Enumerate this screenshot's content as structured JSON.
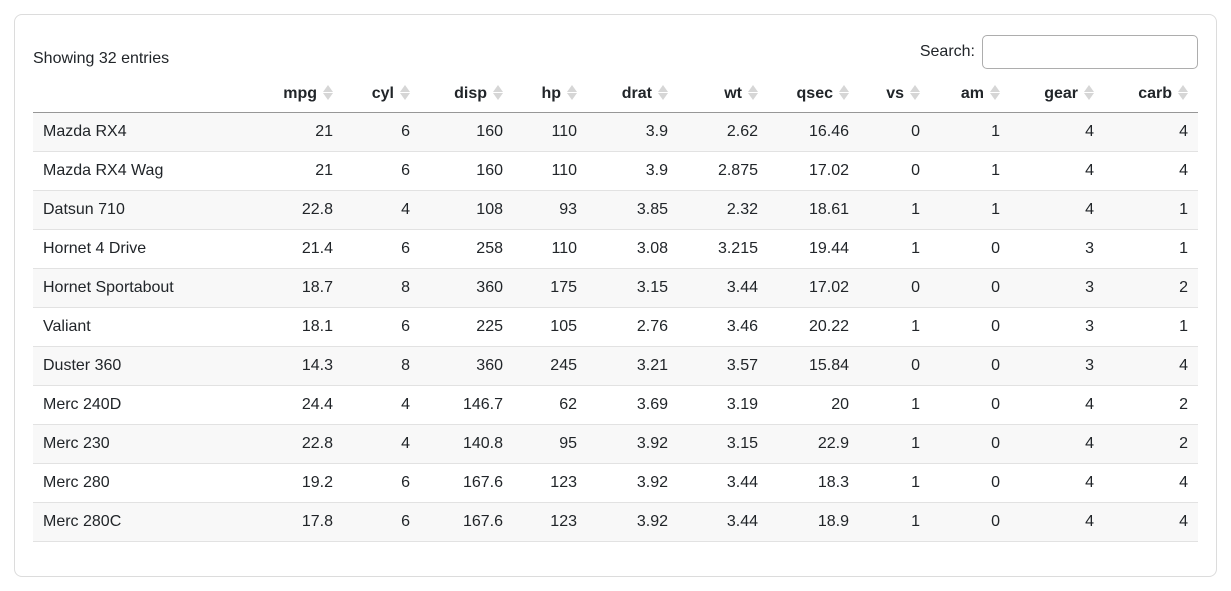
{
  "info": {
    "text": "Showing 32 entries"
  },
  "search": {
    "label": "Search:",
    "value": "",
    "placeholder": ""
  },
  "table": {
    "row_header_label": "",
    "columns": [
      "mpg",
      "cyl",
      "disp",
      "hp",
      "drat",
      "wt",
      "qsec",
      "vs",
      "am",
      "gear",
      "carb"
    ],
    "rows": [
      {
        "name": "Mazda RX4",
        "values": [
          "21",
          "6",
          "160",
          "110",
          "3.9",
          "2.62",
          "16.46",
          "0",
          "1",
          "4",
          "4"
        ]
      },
      {
        "name": "Mazda RX4 Wag",
        "values": [
          "21",
          "6",
          "160",
          "110",
          "3.9",
          "2.875",
          "17.02",
          "0",
          "1",
          "4",
          "4"
        ]
      },
      {
        "name": "Datsun 710",
        "values": [
          "22.8",
          "4",
          "108",
          "93",
          "3.85",
          "2.32",
          "18.61",
          "1",
          "1",
          "4",
          "1"
        ]
      },
      {
        "name": "Hornet 4 Drive",
        "values": [
          "21.4",
          "6",
          "258",
          "110",
          "3.08",
          "3.215",
          "19.44",
          "1",
          "0",
          "3",
          "1"
        ]
      },
      {
        "name": "Hornet Sportabout",
        "values": [
          "18.7",
          "8",
          "360",
          "175",
          "3.15",
          "3.44",
          "17.02",
          "0",
          "0",
          "3",
          "2"
        ]
      },
      {
        "name": "Valiant",
        "values": [
          "18.1",
          "6",
          "225",
          "105",
          "2.76",
          "3.46",
          "20.22",
          "1",
          "0",
          "3",
          "1"
        ]
      },
      {
        "name": "Duster 360",
        "values": [
          "14.3",
          "8",
          "360",
          "245",
          "3.21",
          "3.57",
          "15.84",
          "0",
          "0",
          "3",
          "4"
        ]
      },
      {
        "name": "Merc 240D",
        "values": [
          "24.4",
          "4",
          "146.7",
          "62",
          "3.69",
          "3.19",
          "20",
          "1",
          "0",
          "4",
          "2"
        ]
      },
      {
        "name": "Merc 230",
        "values": [
          "22.8",
          "4",
          "140.8",
          "95",
          "3.92",
          "3.15",
          "22.9",
          "1",
          "0",
          "4",
          "2"
        ]
      },
      {
        "name": "Merc 280",
        "values": [
          "19.2",
          "6",
          "167.6",
          "123",
          "3.92",
          "3.44",
          "18.3",
          "1",
          "0",
          "4",
          "4"
        ]
      },
      {
        "name": "Merc 280C",
        "values": [
          "17.8",
          "6",
          "167.6",
          "123",
          "3.92",
          "3.44",
          "18.9",
          "1",
          "0",
          "4",
          "4"
        ]
      }
    ]
  },
  "colors": {
    "text": "#212529",
    "stripe_row": "#f8f8f8",
    "row_border": "#e2e2e2",
    "header_border": "#979797",
    "card_border": "#dcdcdc",
    "sort_icon": "#d6d6d6",
    "input_border": "#adadad"
  }
}
